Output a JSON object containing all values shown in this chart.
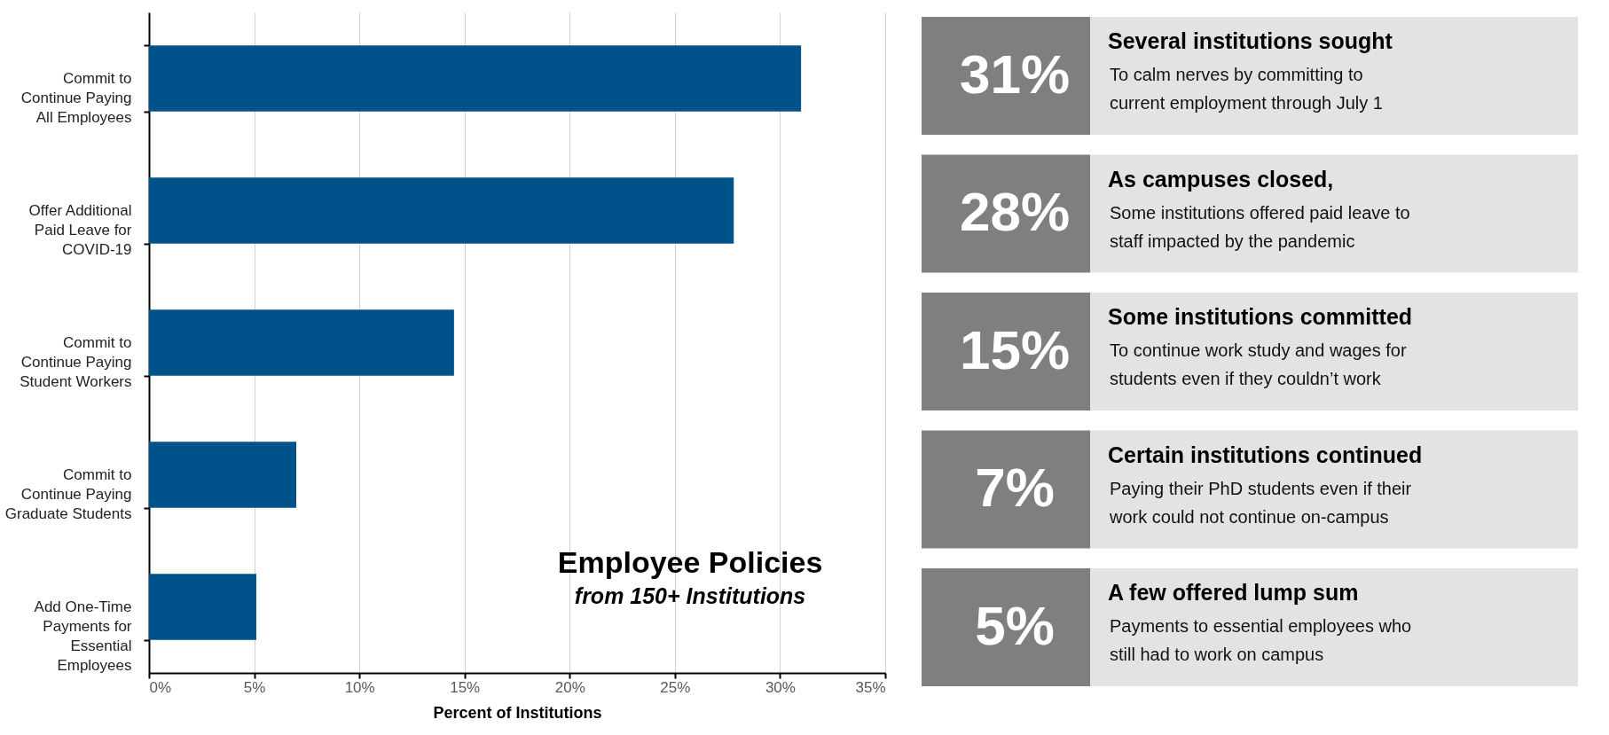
{
  "chart_data": [
    {
      "type": "bar",
      "orientation": "horizontal",
      "title": "Employee Policies",
      "subtitle": "from 150+ Institutions",
      "xlabel": "Percent of Institutions",
      "categories": [
        "Commit to Continue Paying All Employees",
        "Offer Additional Paid Leave for COVID-19",
        "Commit to Continue Paying Student Workers",
        "Commit to Continue Paying Graduate Students",
        "Add One-Time Payments for Essential Employees"
      ],
      "values": [
        31.0,
        27.8,
        14.5,
        7.0,
        5.1
      ],
      "color": "#00538a",
      "xlim": [
        0,
        35
      ],
      "xticks": [
        {
          "value": 0,
          "label": "0%"
        },
        {
          "value": 5,
          "label": "5%"
        },
        {
          "value": 10,
          "label": "10%"
        },
        {
          "value": 15,
          "label": "15%"
        },
        {
          "value": 20,
          "label": "20%"
        },
        {
          "value": 25,
          "label": "25%"
        },
        {
          "value": 30,
          "label": "30%"
        },
        {
          "value": 35,
          "label": "35%"
        }
      ],
      "grid": "x"
    },
    {
      "type": "other",
      "annotations": [
        "31%",
        "Several institutions sought",
        "To calm nerves by committing to",
        "current employment through July 1",
        "28%",
        "As campuses closed,",
        "Some institutions offered paid leave to",
        "staff impacted by the pandemic",
        "15%",
        "Some institutions committed",
        "To continue work study and wages for",
        "students even if they couldn’t work",
        "7%",
        "Certain institutions continued",
        "Paying their PhD students even if their",
        "work could not continue on-campus",
        "5%",
        "A few offered lump sum",
        "Payments to essential employees who",
        "still had to work on campus"
      ]
    }
  ]
}
